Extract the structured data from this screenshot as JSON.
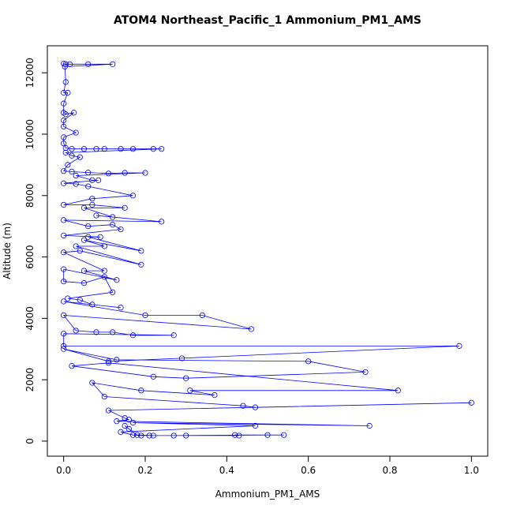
{
  "chart_data": {
    "type": "line",
    "title": "ATOM4 Northeast_Pacific_1 Ammonium_PM1_AMS",
    "x_label": "Ammonium_PM1_AMS",
    "y_label": "Altitude (m)",
    "color": "#0000ff",
    "markers": "open-circle",
    "xlim": [
      -0.04,
      1.04
    ],
    "ylim": [
      -490,
      12880
    ],
    "xticks": [
      {
        "value": 0,
        "label": "0.0"
      },
      0.2,
      0.4,
      0.6,
      0.8,
      {
        "value": 1,
        "label": "1.0"
      }
    ],
    "yticks": [
      0,
      2000,
      4000,
      6000,
      8000,
      10000,
      12000
    ],
    "x": [
      0.0,
      0.005,
      0.015,
      0.06,
      0.12,
      0.003,
      0.005,
      0.0,
      0.01,
      0.0,
      0.0,
      0.005,
      0.025,
      0.0,
      0.0,
      0.03,
      0.0,
      0.0,
      0.005,
      0.02,
      0.05,
      0.08,
      0.1,
      0.14,
      0.17,
      0.22,
      0.24,
      0.005,
      0.02,
      0.04,
      0.01,
      0.0,
      0.02,
      0.06,
      0.11,
      0.15,
      0.2,
      0.03,
      0.07,
      0.085,
      0.0,
      0.03,
      0.06,
      0.17,
      0.07,
      0.0,
      0.07,
      0.15,
      0.05,
      0.12,
      0.08,
      0.24,
      0.0,
      0.06,
      0.12,
      0.14,
      0.0,
      0.09,
      0.06,
      0.19,
      0.05,
      0.1,
      0.03,
      0.19,
      0.04,
      0.0,
      0.1,
      0.05,
      0.13,
      0.0,
      0.0,
      0.05,
      0.1,
      0.12,
      0.01,
      0.04,
      0.07,
      0.14,
      0.0,
      0.2,
      0.34,
      0.46,
      0.0,
      0.03,
      0.08,
      0.12,
      0.17,
      0.27,
      0.0,
      0.0,
      0.97,
      0.29,
      0.11,
      0.0,
      0.13,
      0.6,
      0.74,
      0.3,
      0.22,
      0.02,
      0.11,
      0.82,
      0.31,
      0.37,
      0.19,
      0.07,
      0.1,
      0.44,
      0.47,
      1.0,
      0.11,
      0.15,
      0.16,
      0.13,
      0.75,
      0.17,
      0.47,
      0.14,
      0.17,
      0.19,
      0.21,
      0.27,
      0.5,
      0.54,
      0.42,
      0.43,
      0.3,
      0.22,
      0.18,
      0.15,
      0.16
    ],
    "values": [
      12300,
      12280,
      12280,
      12280,
      12280,
      12200,
      11700,
      11350,
      11350,
      11000,
      10700,
      10650,
      10700,
      10450,
      10250,
      10050,
      9900,
      9700,
      9550,
      9520,
      9520,
      9520,
      9520,
      9520,
      9520,
      9520,
      9520,
      9400,
      9300,
      9250,
      9000,
      8800,
      8780,
      8750,
      8720,
      8740,
      8740,
      8650,
      8500,
      8500,
      8400,
      8380,
      8300,
      8000,
      7900,
      7700,
      7700,
      7600,
      7600,
      7300,
      7350,
      7150,
      7200,
      7000,
      7050,
      6900,
      6700,
      6650,
      6650,
      6200,
      6550,
      6350,
      6350,
      5750,
      6200,
      6150,
      5550,
      5550,
      5250,
      5600,
      5200,
      5150,
      5350,
      4850,
      4650,
      4600,
      4450,
      4350,
      4550,
      4100,
      4100,
      3650,
      4100,
      3600,
      3550,
      3550,
      3450,
      3450,
      3500,
      3100,
      3100,
      2700,
      2600,
      3000,
      2650,
      2600,
      2250,
      2050,
      2100,
      2450,
      2550,
      1650,
      1650,
      1500,
      1650,
      1900,
      1450,
      1150,
      1100,
      1250,
      1000,
      750,
      700,
      650,
      500,
      600,
      500,
      300,
      200,
      180,
      180,
      180,
      200,
      200,
      200,
      180,
      180,
      180,
      200,
      500,
      400
    ]
  }
}
